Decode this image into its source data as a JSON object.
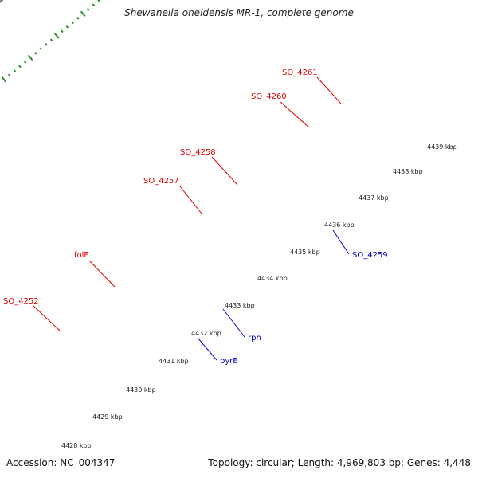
{
  "title": "Shewanella oneidensis MR-1, complete genome",
  "footer": {
    "accession": "Accession: NC_004347",
    "summary": "Topology: circular; Length: 4,969,803 bp; Genes: 4,448"
  },
  "colors": {
    "backbone": "#8a8a8a",
    "tick": "#2d8a2d",
    "red_label": "#dd0000",
    "blue_label": "#0000cc",
    "red_gene": "#ee1111",
    "blue_gene": "#0a14dd",
    "gray_gene": "#555555",
    "steel_gene": "#4a7aa8",
    "orange_gene": "#f39214",
    "cyan_gene": "#22b4ee",
    "pink_gene": "#ee8a8a",
    "teal_gene": "#22dd99"
  },
  "diagram": {
    "kbp_ticks": [
      "4428 kbp",
      "4429 kbp",
      "4430 kbp",
      "4431 kbp",
      "4432 kbp",
      "4433 kbp",
      "4434 kbp",
      "4435 kbp",
      "4436 kbp",
      "4437 kbp",
      "4438 kbp",
      "4439 kbp"
    ],
    "gene_labels": [
      {
        "text": "SO_4261",
        "strand": "+"
      },
      {
        "text": "SO_4260",
        "strand": "+"
      },
      {
        "text": "SO_4258",
        "strand": "+"
      },
      {
        "text": "SO_4257",
        "strand": "+"
      },
      {
        "text": "folE",
        "strand": "+"
      },
      {
        "text": "SO_4252",
        "strand": "+"
      },
      {
        "text": "SO_4259",
        "strand": "-"
      },
      {
        "text": "rph",
        "strand": "-"
      },
      {
        "text": "pyrE",
        "strand": "-"
      }
    ]
  }
}
